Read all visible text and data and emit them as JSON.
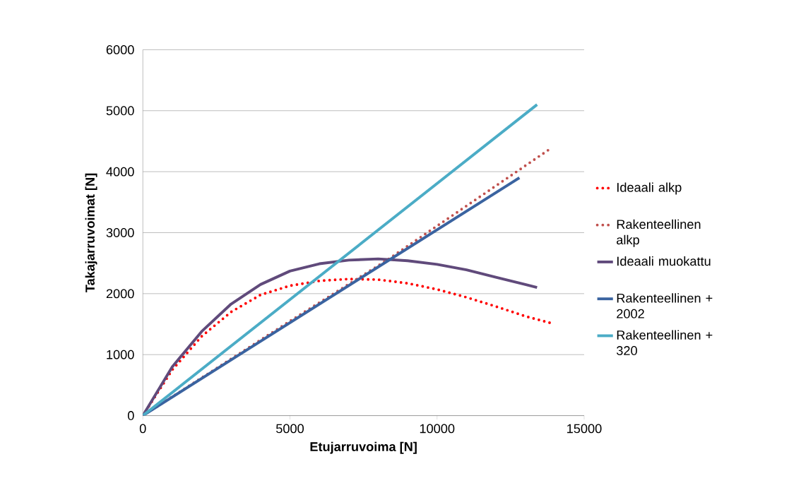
{
  "chart_data": {
    "type": "line",
    "xlabel": "Etujarruvoima [N]",
    "ylabel": "Takajarruvoimat [N]",
    "xlim": [
      0,
      15000
    ],
    "xticks": [
      0,
      5000,
      10000,
      15000
    ],
    "ylim": [
      0,
      6000
    ],
    "yticks": [
      0,
      1000,
      2000,
      3000,
      4000,
      5000,
      6000
    ],
    "grid": "y",
    "legend": "right",
    "marker": "none",
    "series": [
      {
        "name": "Ideaali alkp",
        "color": "#ff0000",
        "line_style": "dotted",
        "x": [
          0,
          1000,
          2000,
          3000,
          4000,
          5000,
          6000,
          7000,
          8000,
          9000,
          10000,
          11000,
          12000,
          13000,
          13850
        ],
        "values": [
          0,
          750,
          1300,
          1700,
          1980,
          2130,
          2210,
          2240,
          2230,
          2170,
          2070,
          1940,
          1790,
          1630,
          1520
        ]
      },
      {
        "name": "Rakenteellinen alkp",
        "color": "#c0504d",
        "line_style": "dotted",
        "x": [
          0,
          5000,
          8300,
          13920
        ],
        "values": [
          0,
          1550,
          2550,
          4400
        ]
      },
      {
        "name": "Ideaali muokattu",
        "color": "#604a7b",
        "line_style": "solid",
        "x": [
          0,
          1000,
          2000,
          3000,
          4000,
          5000,
          6000,
          7000,
          8000,
          9000,
          10000,
          11000,
          12000,
          13000,
          13400
        ],
        "values": [
          0,
          800,
          1380,
          1830,
          2150,
          2370,
          2490,
          2550,
          2570,
          2540,
          2480,
          2390,
          2270,
          2150,
          2100
        ]
      },
      {
        "name": "Rakenteellinen + 2002",
        "color": "#3a63a0",
        "line_style": "solid",
        "x": [
          0,
          12800
        ],
        "values": [
          0,
          3900
        ]
      },
      {
        "name": "Rakenteellinen + 320",
        "color": "#4bacc6",
        "line_style": "solid",
        "x": [
          0,
          13400
        ],
        "values": [
          0,
          5100
        ]
      }
    ]
  }
}
